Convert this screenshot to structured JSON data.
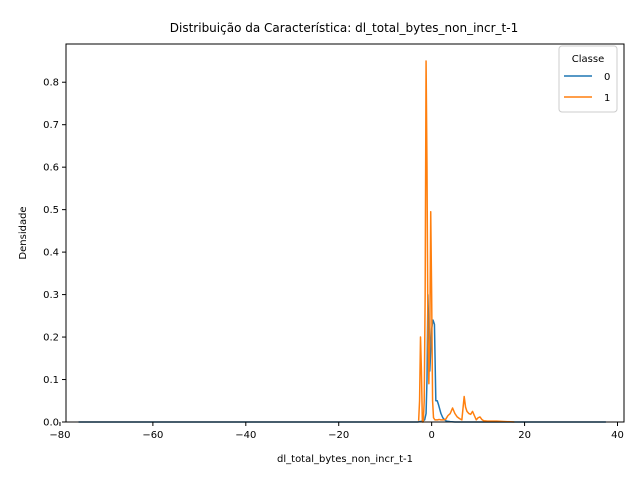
{
  "chart_data": {
    "type": "line",
    "title": "Distribuição da Característica: dl_total_bytes_non_incr_t-1",
    "xlabel": "dl_total_bytes_non_incr_t-1",
    "ylabel": "Densidade",
    "xlim": [
      -78.7,
      41.4
    ],
    "ylim": [
      0,
      0.89
    ],
    "xticks": [
      -80,
      -60,
      -40,
      -20,
      0,
      20,
      40
    ],
    "yticks": [
      0.0,
      0.1,
      0.2,
      0.3,
      0.4,
      0.5,
      0.6,
      0.7,
      0.8
    ],
    "grid": false,
    "legend": {
      "title": "Classe",
      "placement": "top-right"
    },
    "series": [
      {
        "name": "0",
        "color": "#1f77b4",
        "x": [
          -76.0,
          -40.0,
          -10.0,
          -3.0,
          -2.0,
          -1.5,
          -1.2,
          -1.0,
          -0.8,
          -0.6,
          -0.4,
          -0.2,
          0.0,
          0.3,
          0.6,
          0.9,
          1.2,
          1.5,
          2.0,
          2.4,
          2.8,
          3.2,
          4.0,
          5.0,
          10.0,
          37.5
        ],
        "y": [
          0.0,
          0.0,
          0.0,
          0.0,
          0.002,
          0.005,
          0.02,
          0.1,
          0.3,
          0.2,
          0.12,
          0.17,
          0.22,
          0.24,
          0.23,
          0.05,
          0.05,
          0.04,
          0.02,
          0.01,
          0.005,
          0.002,
          0.001,
          0.0,
          0.0,
          0.0
        ]
      },
      {
        "name": "1",
        "color": "#ff7f0e",
        "x": [
          -2.8,
          -2.6,
          -2.4,
          -2.2,
          -2.0,
          -1.8,
          -1.6,
          -1.4,
          -1.2,
          -1.0,
          -0.8,
          -0.6,
          -0.4,
          -0.2,
          0.0,
          0.2,
          0.4,
          0.7,
          1.0,
          1.3,
          1.6,
          2.0,
          2.5,
          3.0,
          3.5,
          4.0,
          4.5,
          5.0,
          5.5,
          6.0,
          6.5,
          7.0,
          7.3,
          7.6,
          8.0,
          8.4,
          8.8,
          9.2,
          9.6,
          10.0,
          10.4,
          10.8,
          11.2,
          12.0,
          14.0,
          16.0,
          17.8
        ],
        "y": [
          0.003,
          0.05,
          0.2,
          0.12,
          0.0,
          0.0,
          0.05,
          0.3,
          0.85,
          0.6,
          0.2,
          0.09,
          0.2,
          0.495,
          0.3,
          0.05,
          0.01,
          0.005,
          0.005,
          0.005,
          0.006,
          0.005,
          0.005,
          0.006,
          0.015,
          0.02,
          0.033,
          0.02,
          0.012,
          0.008,
          0.005,
          0.06,
          0.035,
          0.025,
          0.02,
          0.018,
          0.025,
          0.015,
          0.005,
          0.01,
          0.012,
          0.006,
          0.003,
          0.002,
          0.002,
          0.001,
          0.0
        ]
      }
    ]
  }
}
